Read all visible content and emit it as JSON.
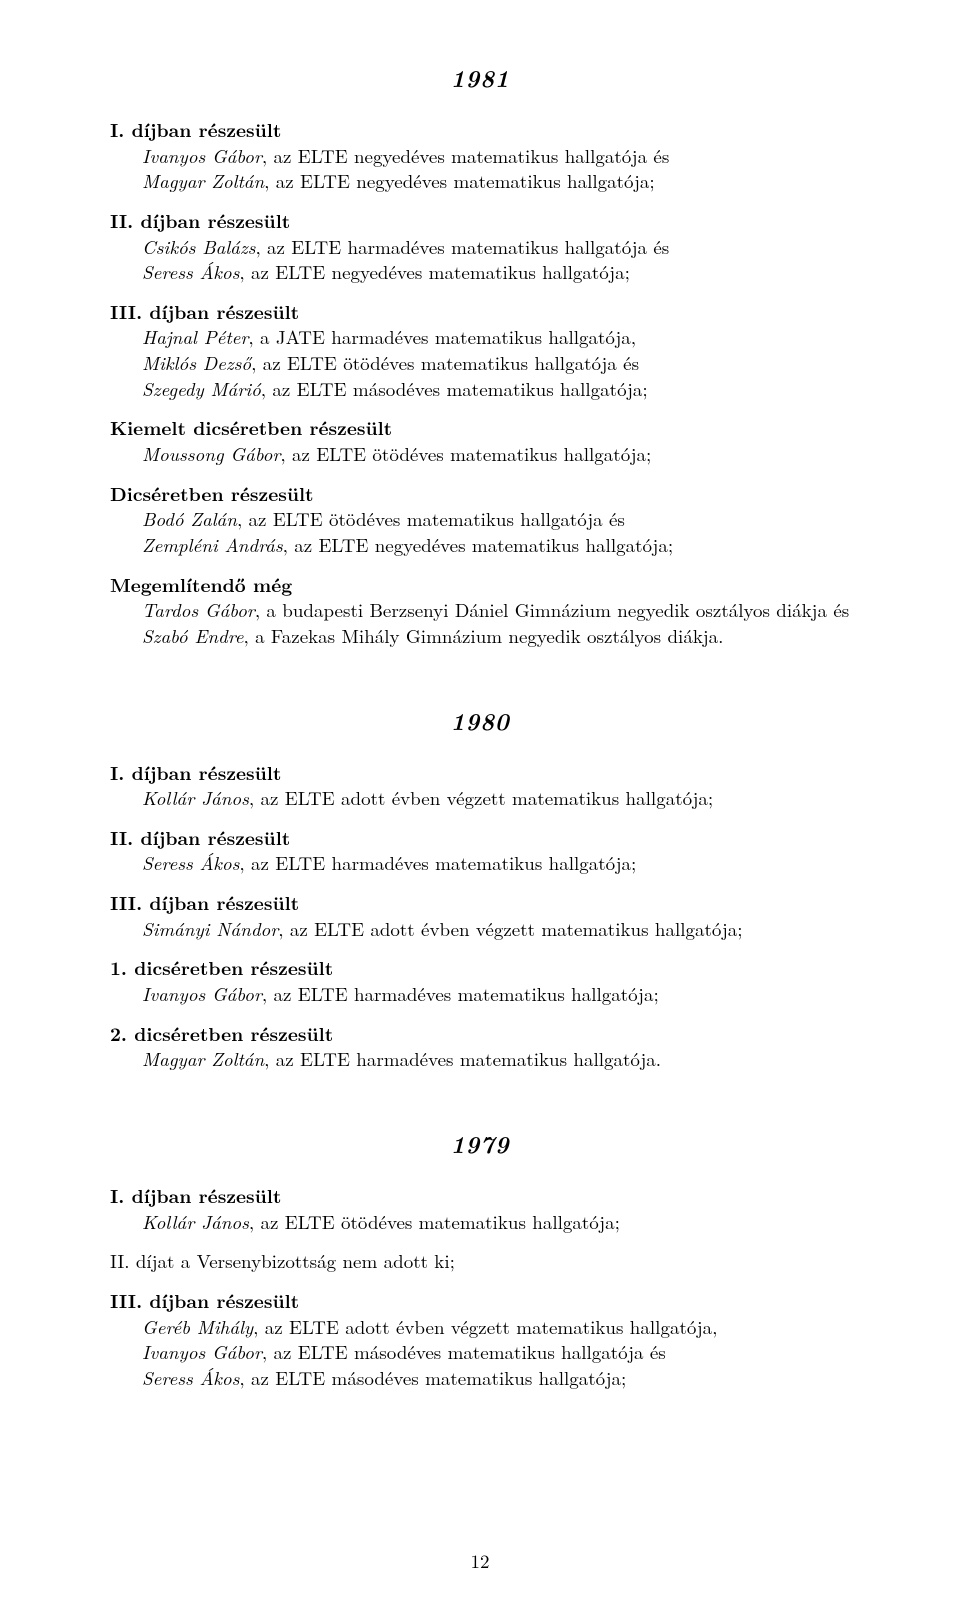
{
  "page_number": "12",
  "years": [
    {
      "year": "1981",
      "sections": [
        {
          "heading": "I. díjban részesült",
          "bold": true,
          "entries": [
            {
              "name": "Ivanyos Gábor",
              "text": ", az ELTE negyedéves matematikus hallgatója és"
            },
            {
              "name": "Magyar Zoltán",
              "text": ", az ELTE negyedéves matematikus hallgatója;"
            }
          ]
        },
        {
          "heading": "II. díjban részesült",
          "bold": true,
          "entries": [
            {
              "name": "Csikós Balázs",
              "text": ", az ELTE harmadéves matematikus hallgatója és"
            },
            {
              "name": "Seress Ákos",
              "text": ", az ELTE negyedéves matematikus hallgatója;"
            }
          ]
        },
        {
          "heading": "III. díjban részesült",
          "bold": true,
          "entries": [
            {
              "name": "Hajnal Péter",
              "text": ", a JATE harmadéves matematikus hallgatója,"
            },
            {
              "name": "Miklós Dezső",
              "text": ", az ELTE ötödéves matematikus hallgatója és"
            },
            {
              "name": "Szegedy Márió",
              "text": ", az ELTE másodéves matematikus hallgatója;"
            }
          ]
        },
        {
          "heading": "Kiemelt dicséretben részesült",
          "bold": true,
          "entries": [
            {
              "name": "Moussong Gábor",
              "text": ", az ELTE ötödéves matematikus hallgatója;"
            }
          ]
        },
        {
          "heading": "Dicséretben részesült",
          "bold": true,
          "entries": [
            {
              "name": "Bodó Zalán",
              "text": ", az ELTE ötödéves matematikus hallgatója és"
            },
            {
              "name": "Zempléni András",
              "text": ", az ELTE negyedéves matematikus hallgatója;"
            }
          ]
        },
        {
          "heading": "Megemlítendő még",
          "bold": true,
          "entries": [
            {
              "name": "Tardos Gábor",
              "text": ", a budapesti Berzsenyi Dániel Gimnázium negyedik osztályos diákja és"
            },
            {
              "name": "Szabó Endre",
              "text": ", a Fazekas Mihály Gimnázium negyedik osztályos diákja."
            }
          ]
        }
      ]
    },
    {
      "year": "1980",
      "sections": [
        {
          "heading": "I. díjban részesült",
          "bold": true,
          "entries": [
            {
              "name": "Kollár János",
              "text": ", az ELTE adott évben végzett matematikus hallgatója;"
            }
          ]
        },
        {
          "heading": "II. díjban részesült",
          "bold": true,
          "entries": [
            {
              "name": "Seress Ákos",
              "text": ", az ELTE harmadéves matematikus hallgatója;"
            }
          ]
        },
        {
          "heading": "III. díjban részesült",
          "bold": true,
          "entries": [
            {
              "name": "Simányi Nándor",
              "text": ", az ELTE adott évben végzett matematikus hallgatója;"
            }
          ]
        },
        {
          "heading": "1. dicséretben részesült",
          "bold": true,
          "entries": [
            {
              "name": "Ivanyos Gábor",
              "text": ", az ELTE harmadéves matematikus hallgatója;"
            }
          ]
        },
        {
          "heading": "2. dicséretben részesült",
          "bold": true,
          "entries": [
            {
              "name": "Magyar Zoltán",
              "text": ", az ELTE harmadéves matematikus hallgatója."
            }
          ]
        }
      ]
    },
    {
      "year": "1979",
      "sections": [
        {
          "heading": "I. díjban részesült",
          "bold": true,
          "entries": [
            {
              "name": "Kollár János",
              "text": ", az ELTE ötödéves matematikus hallgatója;"
            }
          ]
        },
        {
          "heading": "II. díjat a Versenybizottság nem adott ki;",
          "bold": false,
          "entries": []
        },
        {
          "heading": "III. díjban részesült",
          "bold": true,
          "entries": [
            {
              "name": "Geréb Mihály",
              "text": ", az ELTE adott évben végzett matematikus hallgatója,"
            },
            {
              "name": "Ivanyos Gábor",
              "text": ", az ELTE másodéves matematikus hallgatója és"
            },
            {
              "name": "Seress Ákos",
              "text": ", az ELTE másodéves matematikus hallgatója;"
            }
          ]
        }
      ]
    }
  ]
}
